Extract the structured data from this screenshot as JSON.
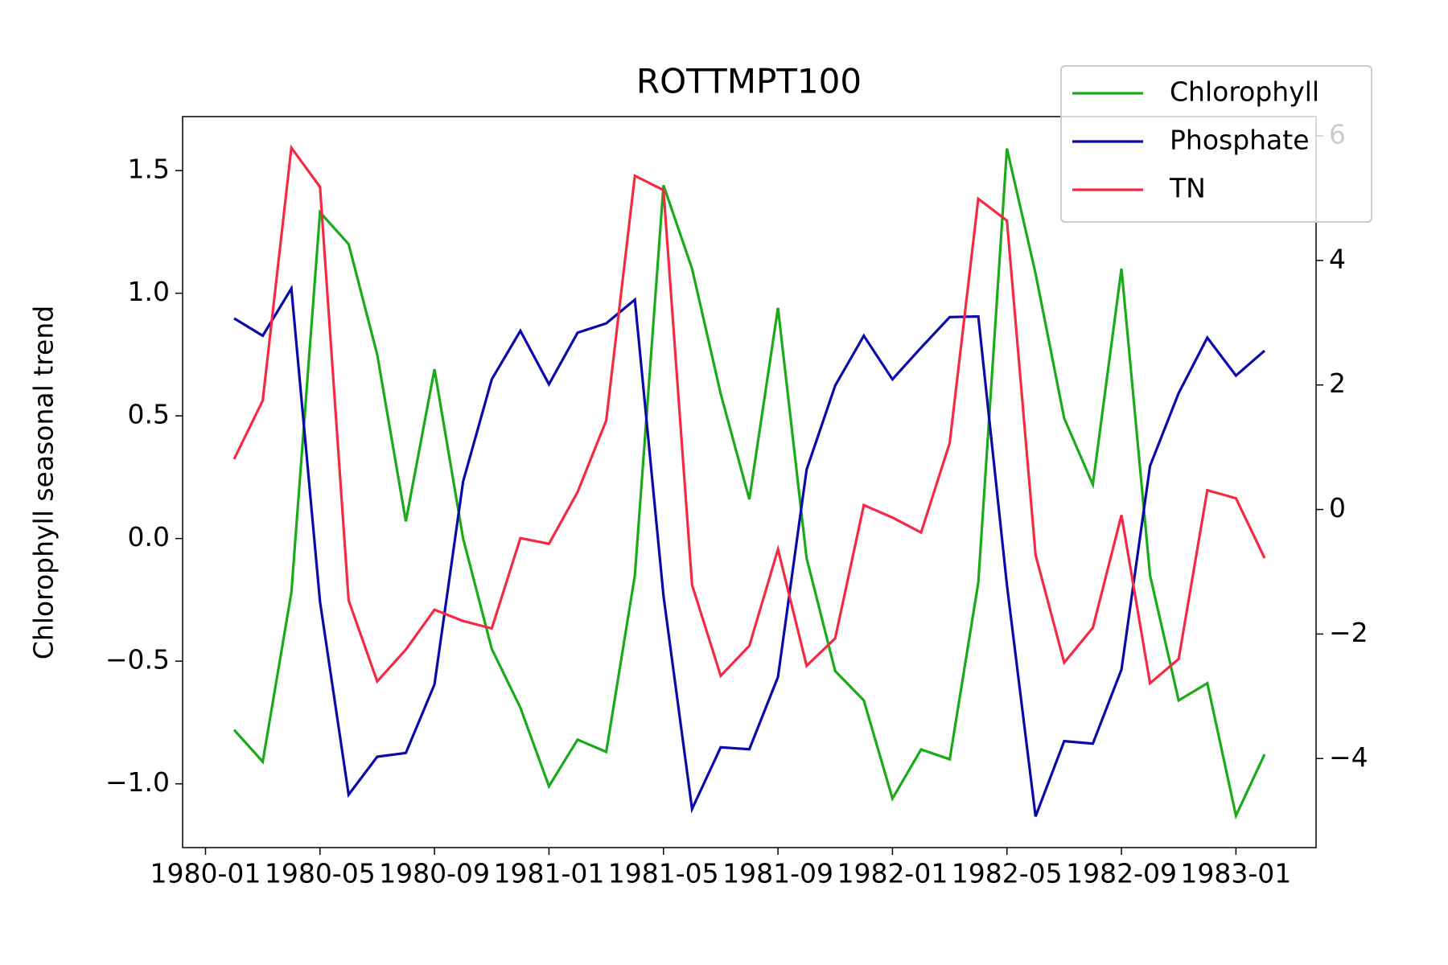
{
  "chart_data": {
    "type": "line",
    "title": "ROTTMPT100",
    "ylabel": "Chlorophyll seasonal trend",
    "x": [
      "1980-02",
      "1980-03",
      "1980-04",
      "1980-05",
      "1980-06",
      "1980-07",
      "1980-08",
      "1980-09",
      "1980-10",
      "1980-11",
      "1980-12",
      "1981-01",
      "1981-02",
      "1981-03",
      "1981-04",
      "1981-05",
      "1981-06",
      "1981-07",
      "1981-08",
      "1981-09",
      "1981-10",
      "1981-11",
      "1981-12",
      "1982-01",
      "1982-02",
      "1982-03",
      "1982-04",
      "1982-05",
      "1982-06",
      "1982-07",
      "1982-08",
      "1982-09",
      "1982-10",
      "1982-11",
      "1982-12",
      "1983-01",
      "1983-02"
    ],
    "series": [
      {
        "name": "Chlorophyll",
        "color": "#1aaa1a",
        "values": [
          -0.78,
          -0.91,
          -0.22,
          1.33,
          1.2,
          0.75,
          0.07,
          0.69,
          0.0,
          -0.45,
          -0.69,
          -1.01,
          -0.82,
          -0.87,
          -0.15,
          1.44,
          1.1,
          0.59,
          0.16,
          0.94,
          -0.08,
          -0.54,
          -0.66,
          -1.06,
          -0.86,
          -0.9,
          -0.18,
          1.59,
          1.08,
          0.49,
          0.22,
          1.1,
          -0.15,
          -0.66,
          -0.59,
          -1.13,
          -0.88
        ]
      },
      {
        "name": "Phosphate",
        "color": "#0a0aaa",
        "axis": "y2",
        "values": [
          3.07,
          2.79,
          3.55,
          -1.48,
          -4.58,
          -3.97,
          -3.91,
          -2.81,
          0.45,
          2.09,
          2.87,
          2.01,
          2.84,
          2.99,
          3.37,
          -1.39,
          -4.81,
          -3.82,
          -3.85,
          -2.69,
          0.64,
          1.99,
          2.79,
          2.09,
          2.6,
          3.09,
          3.1,
          -1.21,
          -4.93,
          -3.72,
          -3.76,
          -2.57,
          0.7,
          1.87,
          2.76,
          2.15,
          2.55
        ]
      },
      {
        "name": "TN",
        "color": "#f42a44",
        "axis": "y2",
        "values": [
          0.81,
          1.75,
          5.81,
          5.18,
          -1.46,
          -2.76,
          -2.25,
          -1.61,
          -1.79,
          -1.91,
          -0.46,
          -0.55,
          0.28,
          1.43,
          5.36,
          5.13,
          -1.21,
          -2.67,
          -2.19,
          -0.64,
          -2.51,
          -2.07,
          0.07,
          -0.13,
          -0.37,
          1.07,
          4.99,
          4.64,
          -0.73,
          -2.46,
          -1.9,
          -0.09,
          -2.79,
          -2.4,
          0.31,
          0.18,
          -0.78
        ]
      }
    ],
    "xticks": [
      "1980-01",
      "1980-05",
      "1980-09",
      "1981-01",
      "1981-05",
      "1981-09",
      "1982-01",
      "1982-05",
      "1982-09",
      "1983-01"
    ],
    "ylim": [
      -1.26,
      1.72
    ],
    "yticks": [
      {
        "value": -1.0,
        "label": "−1.0"
      },
      {
        "value": -0.5,
        "label": "−0.5"
      },
      {
        "value": 0.0,
        "label": "0.0"
      },
      {
        "value": 0.5,
        "label": "0.5"
      },
      {
        "value": 1.0,
        "label": "1.0"
      },
      {
        "value": 1.5,
        "label": "1.5"
      }
    ],
    "y2lim": [
      -5.43,
      6.31
    ],
    "y2ticks": [
      {
        "value": -4,
        "label": "−4"
      },
      {
        "value": -2,
        "label": "−2"
      },
      0,
      2,
      4,
      6
    ],
    "legend": "upper right",
    "grid": false
  }
}
